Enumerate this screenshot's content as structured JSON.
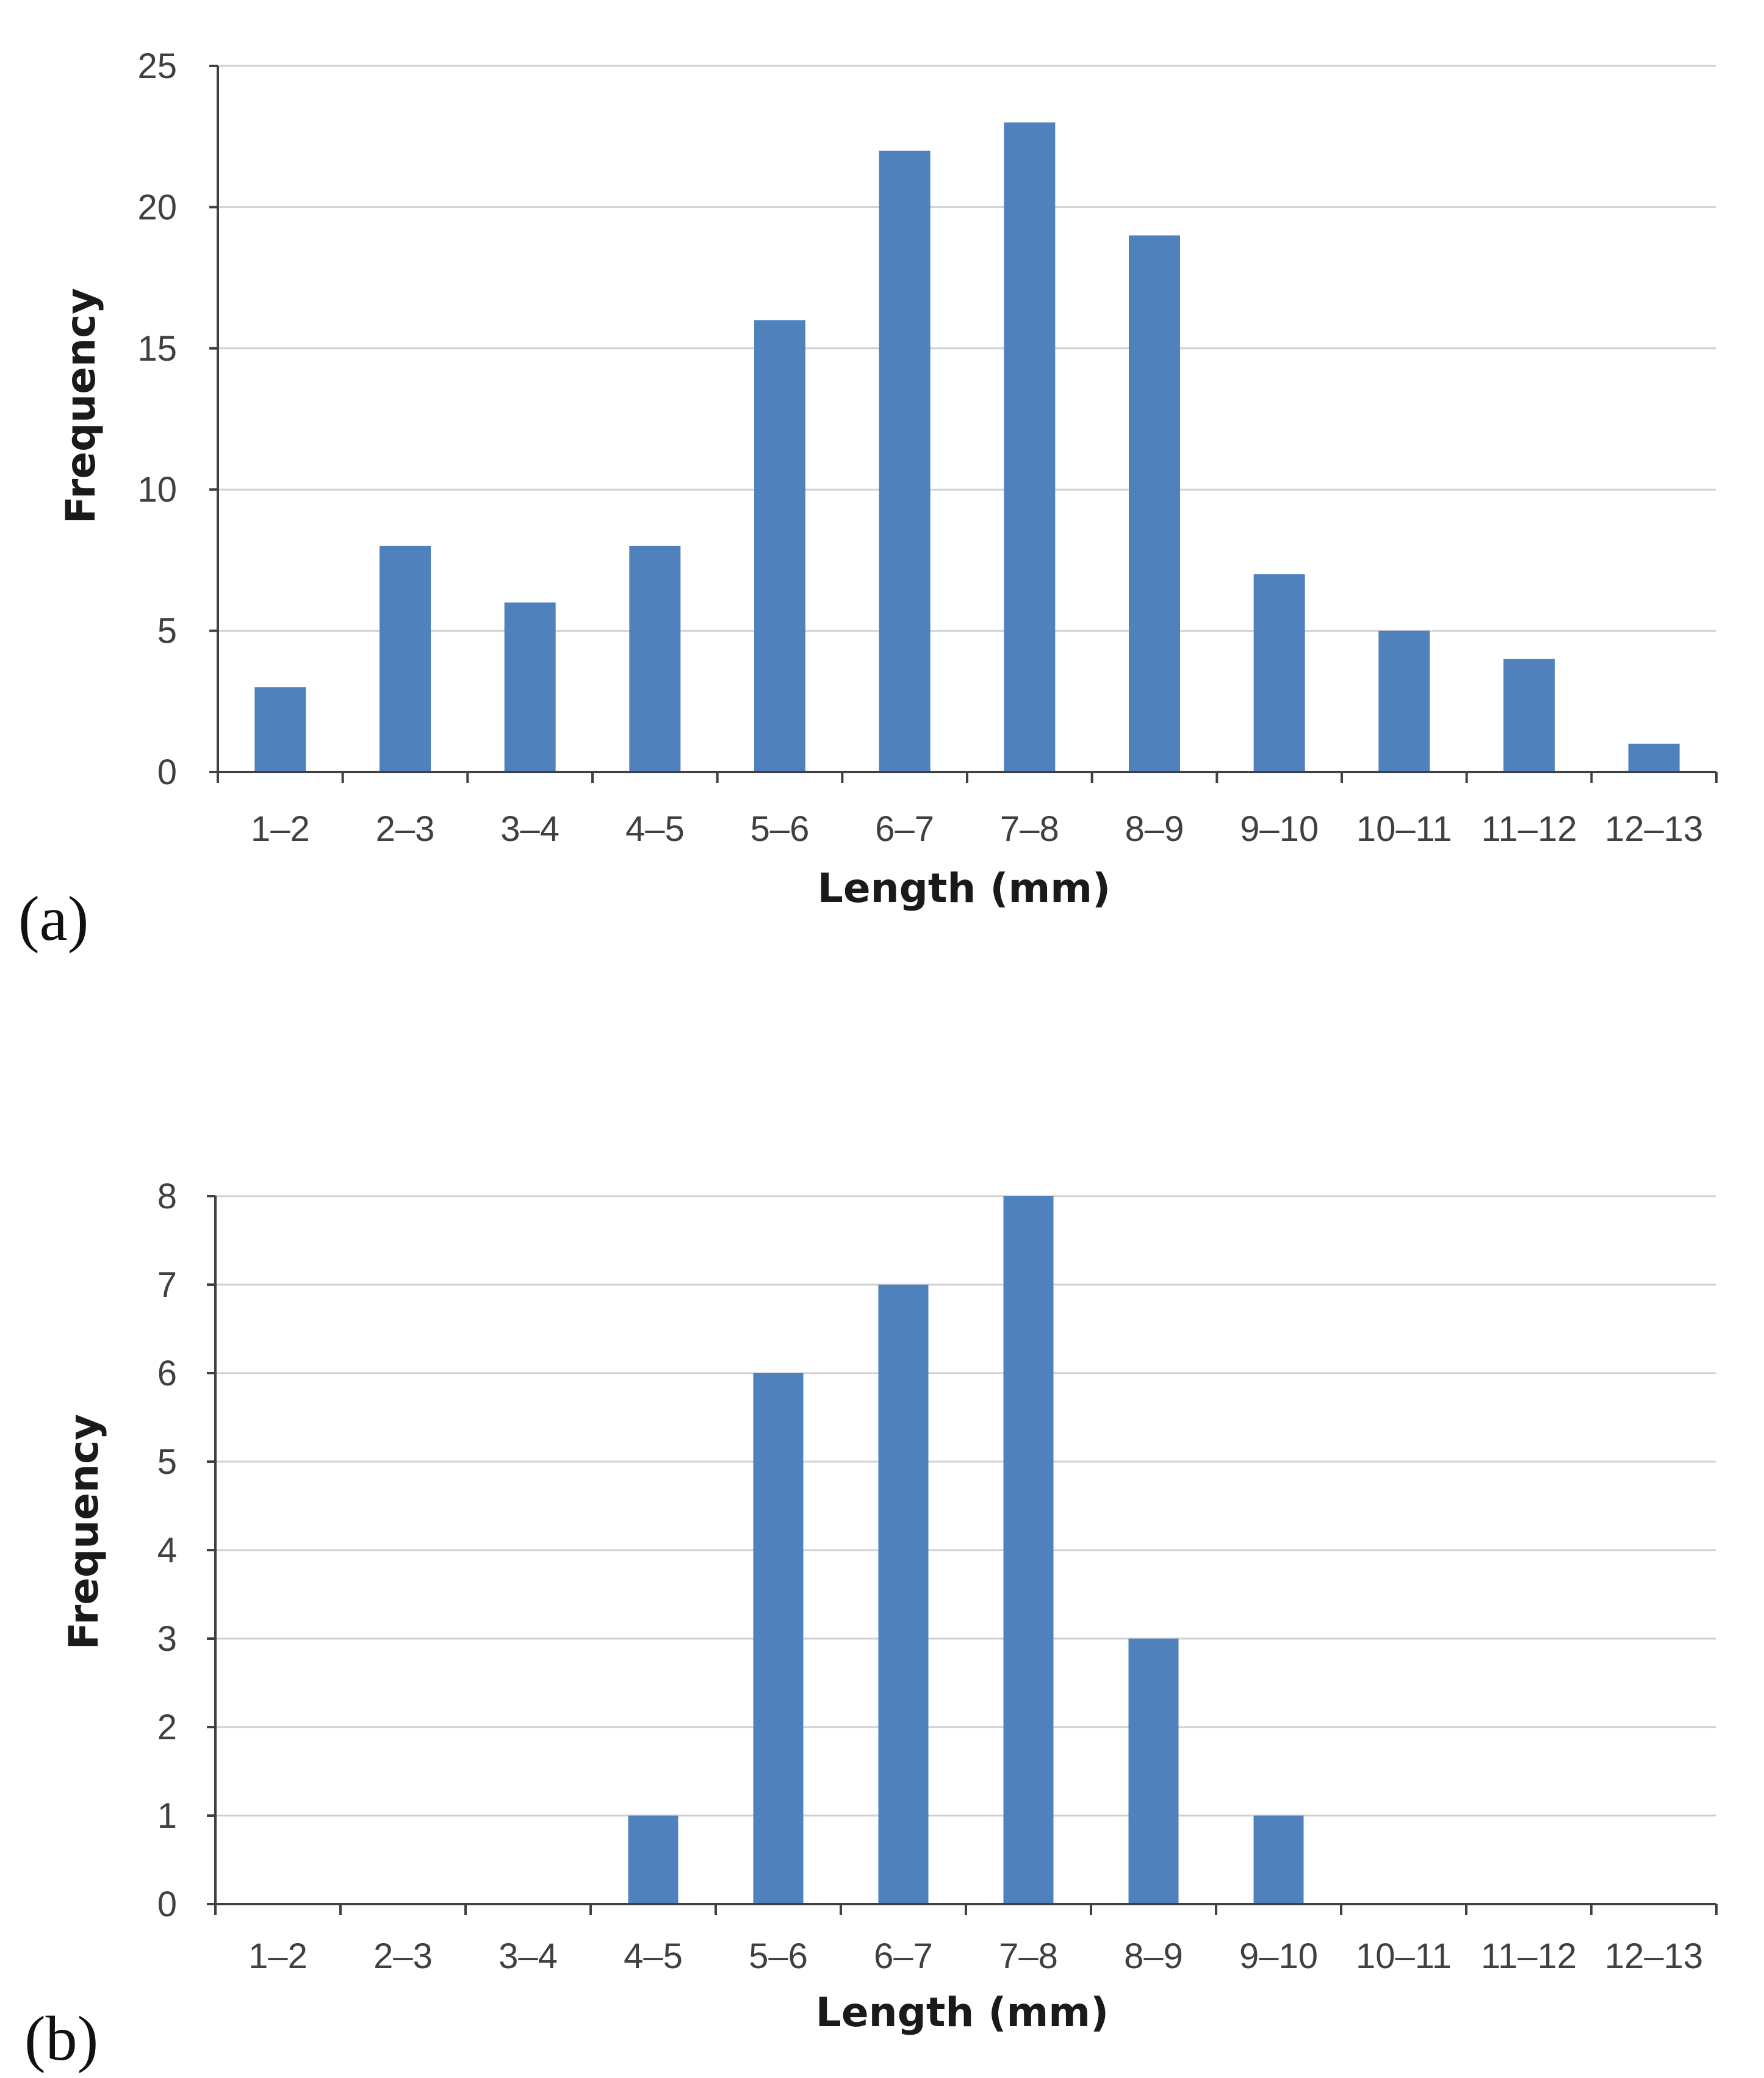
{
  "colors": {
    "bar": "#4f81bd"
  },
  "chart_data": [
    {
      "panel": "(a)",
      "type": "bar",
      "title": "",
      "xlabel": "Length (mm)",
      "ylabel": "Frequency",
      "categories": [
        "1–2",
        "2–3",
        "3–4",
        "4–5",
        "5–6",
        "6–7",
        "7–8",
        "8–9",
        "9–10",
        "10–11",
        "11–12",
        "12–13"
      ],
      "values": [
        3,
        8,
        6,
        8,
        16,
        22,
        23,
        19,
        7,
        5,
        4,
        1
      ],
      "ylim": [
        0,
        25
      ],
      "yticks": [
        0,
        5,
        10,
        15,
        20,
        25
      ],
      "grid": true,
      "legend": "none"
    },
    {
      "panel": "(b)",
      "type": "bar",
      "title": "",
      "xlabel": "Length (mm)",
      "ylabel": "Frequency",
      "categories": [
        "1–2",
        "2–3",
        "3–4",
        "4–5",
        "5–6",
        "6–7",
        "7–8",
        "8–9",
        "9–10",
        "10–11",
        "11–12",
        "12–13"
      ],
      "values": [
        0,
        0,
        0,
        1,
        6,
        7,
        8,
        3,
        1,
        0,
        0,
        0
      ],
      "ylim": [
        0,
        8
      ],
      "yticks": [
        0,
        1,
        2,
        3,
        4,
        5,
        6,
        7,
        8
      ],
      "grid": true,
      "legend": "none"
    }
  ]
}
